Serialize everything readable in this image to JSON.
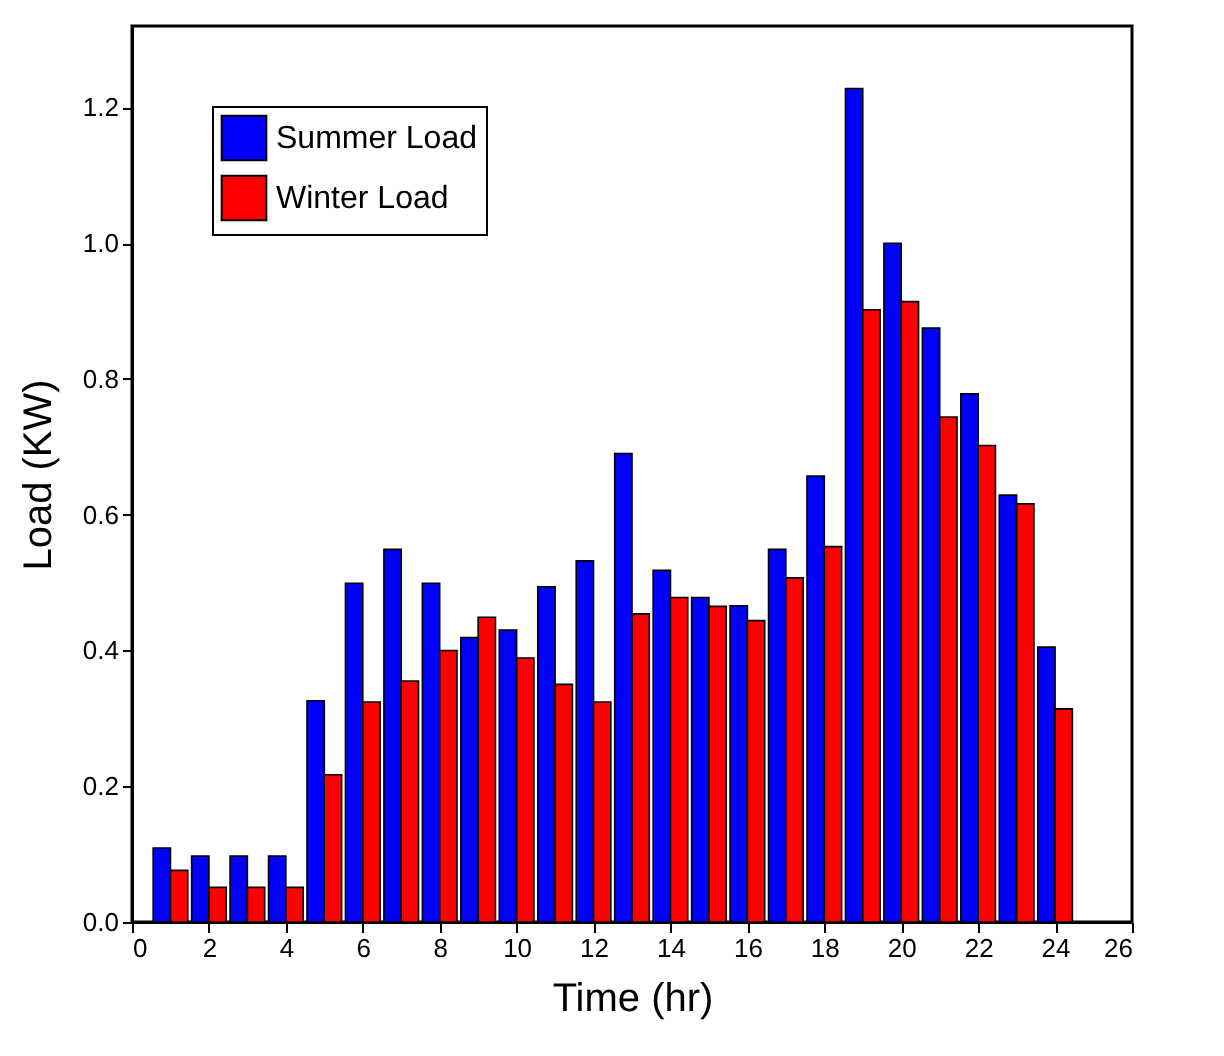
{
  "chart_data": {
    "type": "bar",
    "xlabel": "Time (hr)",
    "ylabel": "Load (KW)",
    "x": [
      1,
      2,
      3,
      4,
      5,
      6,
      7,
      8,
      9,
      10,
      11,
      12,
      13,
      14,
      15,
      16,
      17,
      18,
      19,
      20,
      21,
      22,
      23,
      24
    ],
    "series": [
      {
        "name": "Summer Load",
        "color": "#0000ff",
        "values": [
          0.109,
          0.097,
          0.097,
          0.097,
          0.326,
          0.499,
          0.549,
          0.499,
          0.419,
          0.43,
          0.494,
          0.532,
          0.69,
          0.518,
          0.478,
          0.466,
          0.549,
          0.657,
          1.228,
          1.0,
          0.875,
          0.778,
          0.629,
          0.405
        ]
      },
      {
        "name": "Winter Load",
        "color": "#ff0000",
        "values": [
          0.076,
          0.051,
          0.051,
          0.051,
          0.217,
          0.324,
          0.355,
          0.4,
          0.449,
          0.389,
          0.35,
          0.324,
          0.454,
          0.478,
          0.465,
          0.444,
          0.507,
          0.553,
          0.902,
          0.914,
          0.744,
          0.702,
          0.616,
          0.314
        ]
      }
    ],
    "xlim": [
      0,
      26
    ],
    "xticks": [
      0,
      2,
      4,
      6,
      8,
      10,
      12,
      14,
      16,
      18,
      20,
      22,
      24,
      26
    ],
    "ylim": [
      0,
      1.32
    ],
    "yticks": [
      {
        "value": 0,
        "label": "0.0"
      },
      0.2,
      0.4,
      0.6,
      0.8,
      {
        "value": 1,
        "label": "1.0"
      },
      1.2
    ],
    "legend": "top left",
    "grid": false
  }
}
